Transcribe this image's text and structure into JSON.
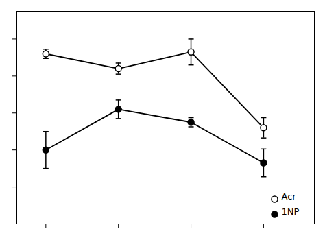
{
  "chart_data": {
    "type": "line",
    "x": [
      1,
      2,
      3,
      4
    ],
    "series": [
      {
        "name": "Acr",
        "color": "#000000",
        "marker": "open_circle",
        "values": [
          0.92,
          0.84,
          0.93,
          0.52
        ],
        "yerr": [
          0.025,
          0.03,
          0.07,
          0.055
        ]
      },
      {
        "name": "1NP",
        "color": "#000000",
        "marker": "filled_circle",
        "values": [
          0.4,
          0.62,
          0.55,
          0.33
        ],
        "yerr": [
          0.1,
          0.05,
          0.025,
          0.075
        ]
      }
    ],
    "xlim": [
      0.6,
      4.7
    ],
    "ylim": [
      0.0,
      1.15
    ],
    "xticks": [
      1,
      2,
      3,
      4
    ],
    "yticks": [
      0,
      0.2,
      0.4,
      0.6,
      0.8,
      1.0
    ],
    "tick_labels": false,
    "grid": false,
    "legend": "lower right"
  }
}
